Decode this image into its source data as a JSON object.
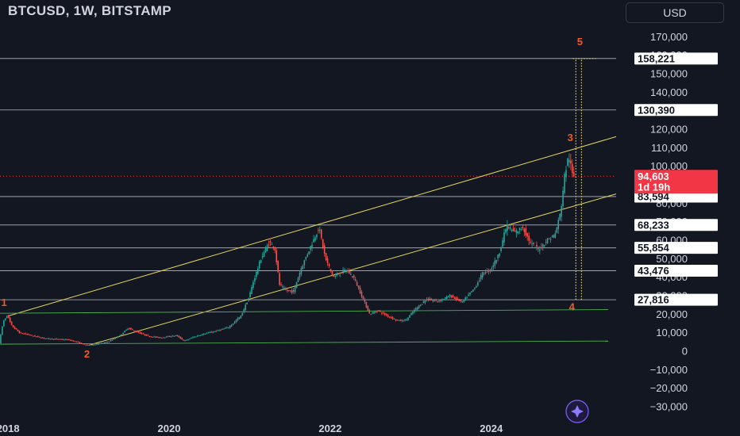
{
  "header": {
    "symbol_title": "BTCUSD, 1W, BITSTAMP",
    "currency_button": "USD"
  },
  "colors": {
    "background": "#131722",
    "up": "#26a69a",
    "down": "#ef5350",
    "channel": "#e6d65a",
    "support": "#4caf50",
    "hline": "#d1d4dc",
    "last_price": "#f23645",
    "wave_label": "#f05a28"
  },
  "icons": {
    "nav_button": "sparkle-icon"
  },
  "chart_data": {
    "type": "candlestick",
    "x_ticks": [
      "2018",
      "2020",
      "2022",
      "2024"
    ],
    "y_ticks": [
      170000,
      160000,
      150000,
      140000,
      130000,
      120000,
      110000,
      100000,
      90000,
      80000,
      70000,
      60000,
      50000,
      40000,
      30000,
      20000,
      10000,
      0,
      -10000,
      -20000,
      -30000
    ],
    "y_tick_labels": [
      "170,000",
      "160,000",
      "150,000",
      "140,000",
      "130,000",
      "120,000",
      "110,000",
      "100,000",
      "90,000",
      "80,000",
      "70,000",
      "60,000",
      "50,000",
      "40,000",
      "30,000",
      "20,000",
      "10,000",
      "0",
      "−10,000",
      "−20,000",
      "−30,000"
    ],
    "ylim": [
      -33000,
      177000
    ],
    "xlim": [
      2017.9,
      2025.55
    ],
    "price_levels": [
      {
        "value": 158221,
        "label": "158,221"
      },
      {
        "value": 130390,
        "label": "130,390"
      },
      {
        "value": 83594,
        "label": "83,594"
      },
      {
        "value": 68233,
        "label": "68,233"
      },
      {
        "value": 55854,
        "label": "55,854"
      },
      {
        "value": 43476,
        "label": "43,476"
      },
      {
        "value": 27816,
        "label": "27,816"
      }
    ],
    "last_price": {
      "value": 94603,
      "label": "94,603",
      "countdown": "1d 19h"
    },
    "upper_channel": [
      [
        2018.0,
        19000
      ],
      [
        2025.55,
        116000
      ]
    ],
    "lower_channel": [
      [
        2019.0,
        3200
      ],
      [
        2025.55,
        85000
      ]
    ],
    "support_lines": [
      [
        [
          2017.9,
          20500
        ],
        [
          2025.45,
          22500
        ]
      ],
      [
        [
          2017.9,
          3800
        ],
        [
          2025.45,
          5500
        ]
      ]
    ],
    "wave_labels": [
      {
        "text": "1",
        "x": 2017.95,
        "y": 24500
      },
      {
        "text": "2",
        "x": 2018.98,
        "y": -3500
      },
      {
        "text": "3",
        "x": 2024.98,
        "y": 113500
      },
      {
        "text": "4",
        "x": 2025.0,
        "y": 22000
      },
      {
        "text": "5",
        "x": 2025.1,
        "y": 165500
      }
    ],
    "projection": {
      "x1": 2025.05,
      "x2": 2025.12,
      "from": 27816,
      "to": 158221
    },
    "price_path": [
      [
        2017.9,
        4500
      ],
      [
        2017.95,
        16000
      ],
      [
        2018.0,
        19500
      ],
      [
        2018.05,
        14000
      ],
      [
        2018.15,
        10000
      ],
      [
        2018.3,
        8500
      ],
      [
        2018.45,
        7000
      ],
      [
        2018.6,
        6500
      ],
      [
        2018.75,
        6300
      ],
      [
        2018.9,
        4500
      ],
      [
        2018.98,
        3300
      ],
      [
        2019.1,
        3700
      ],
      [
        2019.25,
        5000
      ],
      [
        2019.4,
        8500
      ],
      [
        2019.5,
        12500
      ],
      [
        2019.6,
        10500
      ],
      [
        2019.75,
        8200
      ],
      [
        2019.9,
        7300
      ],
      [
        2020.1,
        8500
      ],
      [
        2020.2,
        5500
      ],
      [
        2020.3,
        7500
      ],
      [
        2020.45,
        9500
      ],
      [
        2020.6,
        11000
      ],
      [
        2020.75,
        13000
      ],
      [
        2020.9,
        19000
      ],
      [
        2021.0,
        29000
      ],
      [
        2021.05,
        37000
      ],
      [
        2021.15,
        50000
      ],
      [
        2021.25,
        59000
      ],
      [
        2021.32,
        56000
      ],
      [
        2021.38,
        36000
      ],
      [
        2021.45,
        33000
      ],
      [
        2021.55,
        32000
      ],
      [
        2021.65,
        45000
      ],
      [
        2021.75,
        55000
      ],
      [
        2021.87,
        67000
      ],
      [
        2021.95,
        50000
      ],
      [
        2022.05,
        40000
      ],
      [
        2022.2,
        44000
      ],
      [
        2022.3,
        40000
      ],
      [
        2022.4,
        30000
      ],
      [
        2022.5,
        20000
      ],
      [
        2022.6,
        22000
      ],
      [
        2022.7,
        19500
      ],
      [
        2022.85,
        16500
      ],
      [
        2022.95,
        16800
      ],
      [
        2023.05,
        22000
      ],
      [
        2023.2,
        28000
      ],
      [
        2023.35,
        27000
      ],
      [
        2023.5,
        30000
      ],
      [
        2023.65,
        26500
      ],
      [
        2023.8,
        34000
      ],
      [
        2023.9,
        42000
      ],
      [
        2024.0,
        44000
      ],
      [
        2024.1,
        52000
      ],
      [
        2024.2,
        68000
      ],
      [
        2024.3,
        64000
      ],
      [
        2024.4,
        67000
      ],
      [
        2024.5,
        58000
      ],
      [
        2024.6,
        55000
      ],
      [
        2024.7,
        60000
      ],
      [
        2024.8,
        63000
      ],
      [
        2024.87,
        75000
      ],
      [
        2024.92,
        95000
      ],
      [
        2024.97,
        106000
      ],
      [
        2025.02,
        94603
      ]
    ]
  }
}
